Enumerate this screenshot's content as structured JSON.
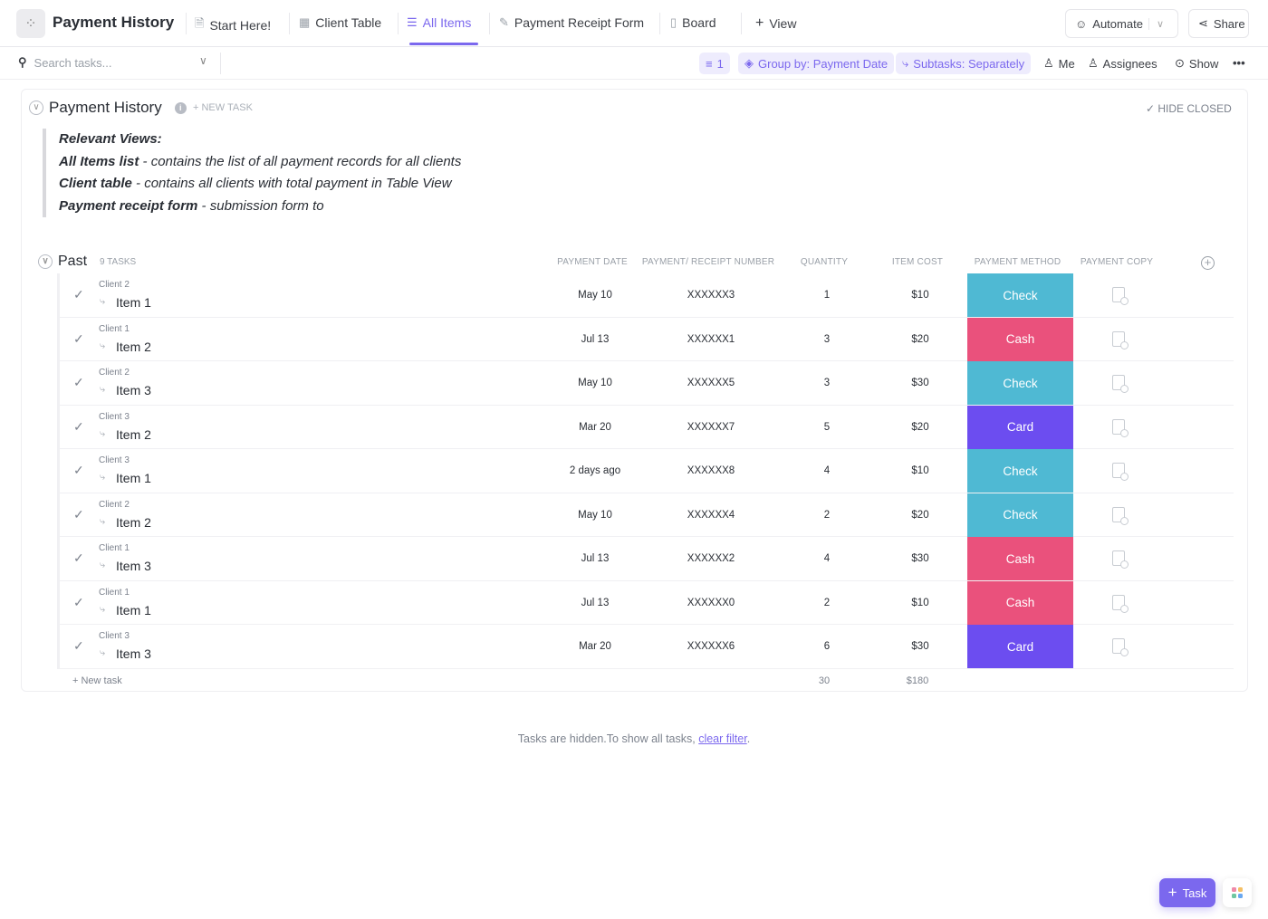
{
  "header": {
    "title": "Payment History",
    "logo_icon": "spinner-dots-icon"
  },
  "tabs": [
    {
      "label": "Start Here!",
      "icon": "doc-icon"
    },
    {
      "label": "Client Table",
      "icon": "table-icon"
    },
    {
      "label": "All Items",
      "icon": "list-icon",
      "active": true
    },
    {
      "label": "Payment Receipt Form",
      "icon": "form-icon"
    },
    {
      "label": "Board",
      "icon": "board-icon"
    },
    {
      "label": "View",
      "icon": "plus-icon"
    }
  ],
  "actions": {
    "automate": "Automate",
    "share": "Share"
  },
  "toolbar": {
    "search_placeholder": "Search tasks...",
    "filter_count": "1",
    "group_by": "Group by: Payment Date",
    "subtasks": "Subtasks: Separately",
    "me": "Me",
    "assignees": "Assignees",
    "show": "Show"
  },
  "list": {
    "title": "Payment History",
    "new_task": "+ NEW TASK",
    "hide_closed": "HIDE CLOSED"
  },
  "description": {
    "heading": "Relevant Views:",
    "lines": [
      {
        "bold": "All Items list",
        "text": " - contains the list of all payment records for all clients"
      },
      {
        "bold": "Client table",
        "text": " - contains all clients with total payment in Table View"
      },
      {
        "bold": "Payment receipt form",
        "text": " - submission form to"
      }
    ]
  },
  "group": {
    "name": "Past",
    "count": "9 TASKS"
  },
  "columns": {
    "date": "PAYMENT DATE",
    "receipt": "PAYMENT/ RECEIPT NUMBER",
    "quantity": "QUANTITY",
    "cost": "ITEM COST",
    "method": "PAYMENT METHOD",
    "copy": "PAYMENT COPY"
  },
  "method_colors": {
    "Check": "#4fb9d3",
    "Cash": "#ea517c",
    "Card": "#6c4df0"
  },
  "rows": [
    {
      "client": "Client 2",
      "name": "Item 1",
      "date": "May 10",
      "receipt": "XXXXXX3",
      "quantity": "1",
      "cost": "$10",
      "method": "Check"
    },
    {
      "client": "Client 1",
      "name": "Item 2",
      "date": "Jul 13",
      "receipt": "XXXXXX1",
      "quantity": "3",
      "cost": "$20",
      "method": "Cash"
    },
    {
      "client": "Client 2",
      "name": "Item 3",
      "date": "May 10",
      "receipt": "XXXXXX5",
      "quantity": "3",
      "cost": "$30",
      "method": "Check"
    },
    {
      "client": "Client 3",
      "name": "Item 2",
      "date": "Mar 20",
      "receipt": "XXXXXX7",
      "quantity": "5",
      "cost": "$20",
      "method": "Card"
    },
    {
      "client": "Client 3",
      "name": "Item 1",
      "date": "2 days ago",
      "receipt": "XXXXXX8",
      "quantity": "4",
      "cost": "$10",
      "method": "Check"
    },
    {
      "client": "Client 2",
      "name": "Item 2",
      "date": "May 10",
      "receipt": "XXXXXX4",
      "quantity": "2",
      "cost": "$20",
      "method": "Check"
    },
    {
      "client": "Client 1",
      "name": "Item 3",
      "date": "Jul 13",
      "receipt": "XXXXXX2",
      "quantity": "4",
      "cost": "$30",
      "method": "Cash"
    },
    {
      "client": "Client 1",
      "name": "Item 1",
      "date": "Jul 13",
      "receipt": "XXXXXX0",
      "quantity": "2",
      "cost": "$10",
      "method": "Cash"
    },
    {
      "client": "Client 3",
      "name": "Item 3",
      "date": "Mar 20",
      "receipt": "XXXXXX6",
      "quantity": "6",
      "cost": "$30",
      "method": "Card"
    }
  ],
  "footer": {
    "new_task": "+ New task",
    "quantity_total": "30",
    "cost_total": "$180"
  },
  "hidden": {
    "text": "Tasks are hidden.To show all tasks, ",
    "link": "clear filter",
    "end": "."
  },
  "fab": {
    "task": "Task"
  }
}
